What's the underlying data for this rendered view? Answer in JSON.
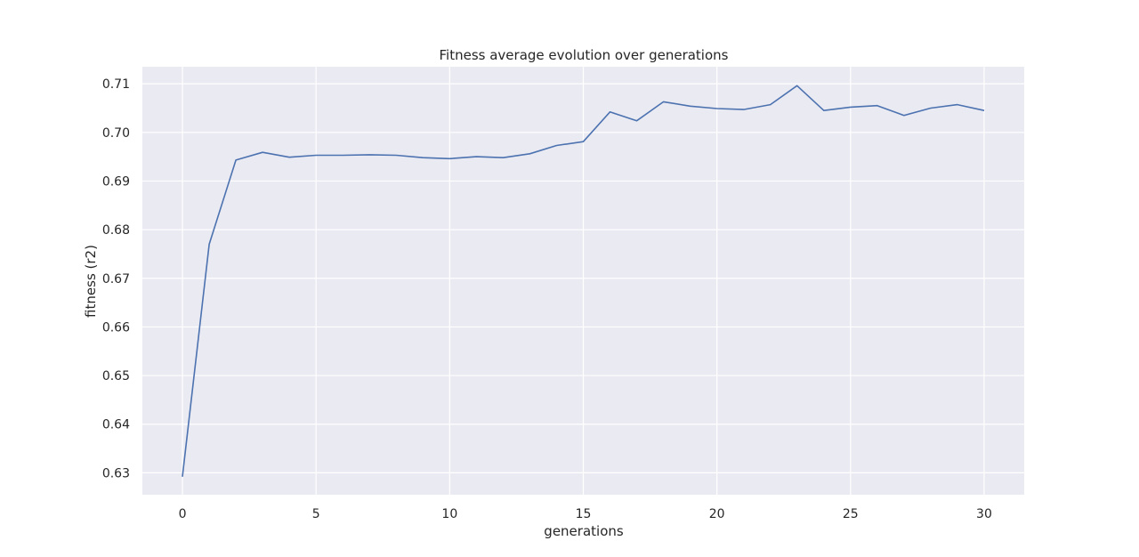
{
  "chart_data": {
    "type": "line",
    "title": "Fitness average evolution over generations",
    "xlabel": "generations",
    "ylabel": "fitness (r2)",
    "xlim": [
      -1.5,
      31.5
    ],
    "ylim": [
      0.6255,
      0.7135
    ],
    "xticks": [
      0,
      5,
      10,
      15,
      20,
      25,
      30
    ],
    "xtick_labels": [
      "0",
      "5",
      "10",
      "15",
      "20",
      "25",
      "30"
    ],
    "yticks": [
      0.63,
      0.64,
      0.65,
      0.66,
      0.67,
      0.68,
      0.69,
      0.7,
      0.71
    ],
    "ytick_labels": [
      "0.63",
      "0.64",
      "0.65",
      "0.66",
      "0.67",
      "0.68",
      "0.69",
      "0.70",
      "0.71"
    ],
    "grid": true,
    "series": [
      {
        "x": [
          0,
          1,
          2,
          3,
          4,
          5,
          6,
          7,
          8,
          9,
          10,
          11,
          12,
          13,
          14,
          15,
          16,
          17,
          18,
          19,
          20,
          21,
          22,
          23,
          24,
          25,
          26,
          27,
          28,
          29,
          30
        ],
        "values": [
          0.6292,
          0.677,
          0.6943,
          0.6959,
          0.6949,
          0.6953,
          0.6953,
          0.6954,
          0.6953,
          0.6948,
          0.6946,
          0.695,
          0.6948,
          0.6956,
          0.6973,
          0.6981,
          0.7042,
          0.7024,
          0.7063,
          0.7054,
          0.7049,
          0.7047,
          0.7057,
          0.7096,
          0.7045,
          0.7052,
          0.7055,
          0.7035,
          0.705,
          0.7057,
          0.7045
        ]
      }
    ]
  },
  "colors": {
    "background": "#ffffff",
    "plot_background": "#eaeaf2",
    "grid": "#ffffff",
    "line": "#4c72b0",
    "text": "#262626"
  }
}
